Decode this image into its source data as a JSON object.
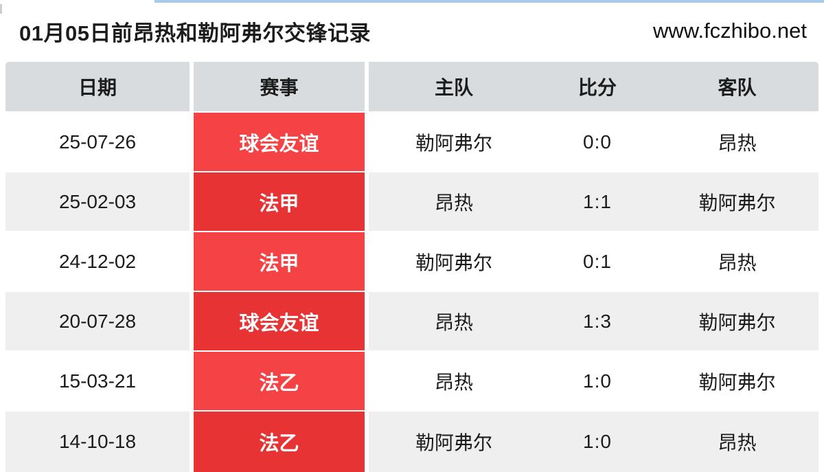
{
  "page": {
    "title": "01月05日前昂热和勒阿弗尔交锋记录",
    "website": "www.fczhibo.net"
  },
  "table": {
    "headers": [
      "日期",
      "赛事",
      "主队",
      "比分",
      "客队"
    ],
    "rows": [
      {
        "date": "25-07-26",
        "competition": "球会友谊",
        "home": "勒阿弗尔",
        "score": "0:0",
        "away": "昂热"
      },
      {
        "date": "25-02-03",
        "competition": "法甲",
        "home": "昂热",
        "score": "1:1",
        "away": "勒阿弗尔"
      },
      {
        "date": "24-12-02",
        "competition": "法甲",
        "home": "勒阿弗尔",
        "score": "0:1",
        "away": "昂热"
      },
      {
        "date": "20-07-28",
        "competition": "球会友谊",
        "home": "昂热",
        "score": "1:3",
        "away": "勒阿弗尔"
      },
      {
        "date": "15-03-21",
        "competition": "法乙",
        "home": "昂热",
        "score": "1:0",
        "away": "勒阿弗尔"
      },
      {
        "date": "14-10-18",
        "competition": "法乙",
        "home": "勒阿弗尔",
        "score": "1:0",
        "away": "昂热"
      }
    ]
  },
  "colors": {
    "competition_red_bright": "#f54244",
    "competition_red_dark": "#e83334",
    "header_bg": "#d8dcde",
    "row_alt_bg": "#f0efef",
    "top_line_blue": "#a9cbe9",
    "text": "#1c1c1c"
  }
}
